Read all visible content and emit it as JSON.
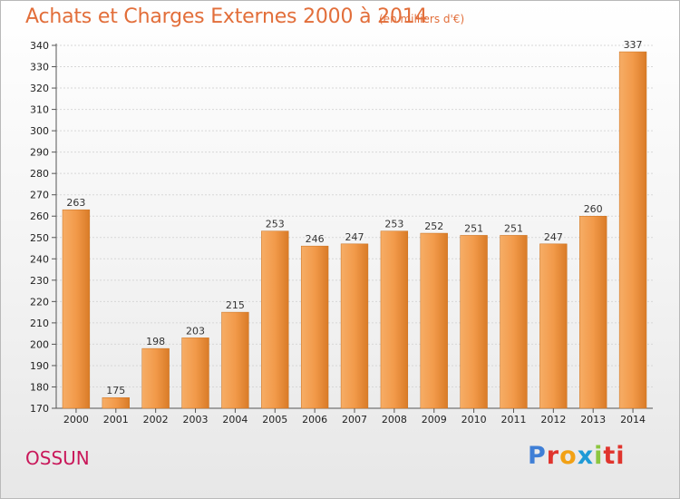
{
  "title": "Achats et Charges Externes 2000 à 2014",
  "subtitle": "(en milliers d'€)",
  "city": "OSSUN",
  "logo": [
    "P",
    "r",
    "o",
    "x",
    "i",
    "t",
    "i"
  ],
  "colors": {
    "title": "#e26e3a",
    "city": "#c9185a",
    "bar_light": "#f5a55a",
    "bar_dark": "#d67824"
  },
  "chart_data": {
    "type": "bar",
    "title": "Achats et Charges Externes 2000 à 2014",
    "subtitle": "(en milliers d'€)",
    "xlabel": "",
    "ylabel": "",
    "ylim": [
      170,
      340
    ],
    "ytick_step": 10,
    "grid": "horizontal",
    "categories": [
      "2000",
      "2001",
      "2002",
      "2003",
      "2004",
      "2005",
      "2006",
      "2007",
      "2008",
      "2009",
      "2010",
      "2011",
      "2012",
      "2013",
      "2014"
    ],
    "values": [
      263,
      175,
      198,
      203,
      215,
      253,
      246,
      247,
      253,
      252,
      251,
      251,
      247,
      260,
      337
    ]
  }
}
